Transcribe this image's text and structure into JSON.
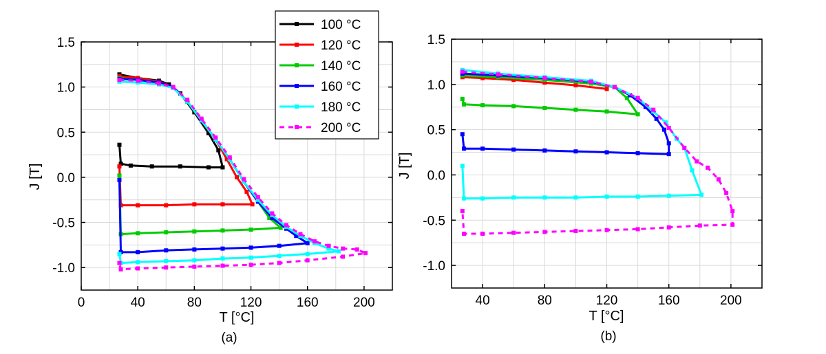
{
  "chart_data": [
    {
      "type": "line",
      "panel_label": "(a)",
      "xlabel": "T [°C]",
      "ylabel": "J [T]",
      "xlim": [
        0,
        220
      ],
      "ylim": [
        -1.25,
        1.5
      ],
      "xticks": [
        0,
        40,
        80,
        120,
        160,
        200
      ],
      "yticks": [
        -1.0,
        -0.5,
        0.0,
        0.5,
        1.0,
        1.5
      ],
      "xtick_labels": [
        "0",
        "40",
        "80",
        "120",
        "160",
        "200"
      ],
      "ytick_labels": [
        "-1.0",
        "-0.5",
        "0.0",
        "0.5",
        "1.0",
        "1.5"
      ],
      "grid": true,
      "legend_position": "top-right",
      "series": [
        {
          "name": "100 °C",
          "color": "#000000",
          "dash": "solid",
          "points": [
            [
              27,
              1.14
            ],
            [
              40,
              1.1
            ],
            [
              55,
              1.07
            ],
            [
              62,
              1.03
            ],
            [
              70,
              0.93
            ],
            [
              80,
              0.72
            ],
            [
              90,
              0.49
            ],
            [
              97,
              0.3
            ],
            [
              100,
              0.11
            ],
            [
              90,
              0.11
            ],
            [
              70,
              0.12
            ],
            [
              50,
              0.12
            ],
            [
              35,
              0.13
            ],
            [
              28,
              0.15
            ],
            [
              27,
              0.36
            ]
          ]
        },
        {
          "name": "120 °C",
          "color": "#ff0000",
          "dash": "solid",
          "points": [
            [
              27,
              1.12
            ],
            [
              40,
              1.1
            ],
            [
              55,
              1.06
            ],
            [
              65,
              1.0
            ],
            [
              75,
              0.84
            ],
            [
              85,
              0.63
            ],
            [
              95,
              0.42
            ],
            [
              103,
              0.2
            ],
            [
              110,
              0.0
            ],
            [
              117,
              -0.16
            ],
            [
              121,
              -0.3
            ],
            [
              100,
              -0.3
            ],
            [
              80,
              -0.3
            ],
            [
              60,
              -0.31
            ],
            [
              40,
              -0.31
            ],
            [
              28,
              -0.31
            ],
            [
              27,
              0.12
            ]
          ]
        },
        {
          "name": "140 °C",
          "color": "#00cc00",
          "dash": "solid",
          "points": [
            [
              27,
              1.1
            ],
            [
              40,
              1.08
            ],
            [
              55,
              1.05
            ],
            [
              65,
              1.0
            ],
            [
              75,
              0.84
            ],
            [
              85,
              0.63
            ],
            [
              95,
              0.42
            ],
            [
              105,
              0.2
            ],
            [
              115,
              -0.05
            ],
            [
              125,
              -0.27
            ],
            [
              133,
              -0.45
            ],
            [
              141,
              -0.56
            ],
            [
              120,
              -0.58
            ],
            [
              100,
              -0.59
            ],
            [
              80,
              -0.6
            ],
            [
              60,
              -0.61
            ],
            [
              40,
              -0.62
            ],
            [
              28,
              -0.63
            ],
            [
              27,
              0.02
            ]
          ]
        },
        {
          "name": "160 °C",
          "color": "#0000ff",
          "dash": "solid",
          "points": [
            [
              27,
              1.09
            ],
            [
              40,
              1.08
            ],
            [
              55,
              1.05
            ],
            [
              65,
              1.0
            ],
            [
              75,
              0.84
            ],
            [
              85,
              0.63
            ],
            [
              95,
              0.42
            ],
            [
              105,
              0.2
            ],
            [
              115,
              -0.05
            ],
            [
              125,
              -0.27
            ],
            [
              135,
              -0.45
            ],
            [
              145,
              -0.57
            ],
            [
              152,
              -0.65
            ],
            [
              160,
              -0.73
            ],
            [
              140,
              -0.76
            ],
            [
              120,
              -0.78
            ],
            [
              100,
              -0.79
            ],
            [
              80,
              -0.8
            ],
            [
              60,
              -0.81
            ],
            [
              40,
              -0.83
            ],
            [
              28,
              -0.83
            ],
            [
              27,
              -0.03
            ]
          ]
        },
        {
          "name": "180 °C",
          "color": "#00ffff",
          "dash": "solid",
          "points": [
            [
              27,
              1.06
            ],
            [
              40,
              1.05
            ],
            [
              55,
              1.03
            ],
            [
              65,
              0.99
            ],
            [
              75,
              0.84
            ],
            [
              85,
              0.63
            ],
            [
              95,
              0.42
            ],
            [
              105,
              0.2
            ],
            [
              115,
              -0.05
            ],
            [
              125,
              -0.25
            ],
            [
              135,
              -0.42
            ],
            [
              145,
              -0.55
            ],
            [
              155,
              -0.65
            ],
            [
              165,
              -0.73
            ],
            [
              175,
              -0.79
            ],
            [
              182,
              -0.82
            ],
            [
              160,
              -0.85
            ],
            [
              140,
              -0.87
            ],
            [
              120,
              -0.89
            ],
            [
              100,
              -0.9
            ],
            [
              80,
              -0.92
            ],
            [
              60,
              -0.93
            ],
            [
              40,
              -0.94
            ],
            [
              28,
              -0.95
            ],
            [
              27,
              -0.85
            ]
          ]
        },
        {
          "name": "200 °C",
          "color": "#ff00ff",
          "dash": "dashed",
          "points": [
            [
              27,
              1.08
            ],
            [
              40,
              1.07
            ],
            [
              55,
              1.04
            ],
            [
              65,
              1.0
            ],
            [
              75,
              0.86
            ],
            [
              85,
              0.65
            ],
            [
              95,
              0.44
            ],
            [
              105,
              0.22
            ],
            [
              115,
              -0.02
            ],
            [
              125,
              -0.22
            ],
            [
              135,
              -0.4
            ],
            [
              145,
              -0.53
            ],
            [
              155,
              -0.63
            ],
            [
              165,
              -0.71
            ],
            [
              175,
              -0.76
            ],
            [
              185,
              -0.79
            ],
            [
              195,
              -0.8
            ],
            [
              201,
              -0.84
            ],
            [
              185,
              -0.88
            ],
            [
              160,
              -0.92
            ],
            [
              140,
              -0.95
            ],
            [
              120,
              -0.97
            ],
            [
              100,
              -0.98
            ],
            [
              80,
              -0.99
            ],
            [
              60,
              -1.0
            ],
            [
              40,
              -1.01
            ],
            [
              28,
              -1.02
            ],
            [
              27,
              -0.95
            ]
          ]
        }
      ]
    },
    {
      "type": "line",
      "panel_label": "(b)",
      "xlabel": "T [°C]",
      "ylabel": "J [T]",
      "xlim": [
        20,
        220
      ],
      "ylim": [
        -1.25,
        1.5
      ],
      "xticks": [
        40,
        80,
        120,
        160,
        200
      ],
      "yticks": [
        -1.0,
        -0.5,
        0.0,
        0.5,
        1.0,
        1.5
      ],
      "xtick_labels": [
        "40",
        "80",
        "120",
        "160",
        "200"
      ],
      "ytick_labels": [
        "-1.0",
        "-0.5",
        "0.0",
        "0.5",
        "1.0",
        "1.5"
      ],
      "grid": true,
      "legend_position": "none",
      "series": [
        {
          "name": "100 °C",
          "color": "#000000",
          "dash": "solid",
          "points": []
        },
        {
          "name": "120 °C",
          "color": "#ff0000",
          "dash": "solid",
          "points": [
            [
              27,
              1.08
            ],
            [
              40,
              1.07
            ],
            [
              60,
              1.05
            ],
            [
              80,
              1.02
            ],
            [
              100,
              0.99
            ],
            [
              120,
              0.95
            ]
          ]
        },
        {
          "name": "140 °C",
          "color": "#00cc00",
          "dash": "solid",
          "points": [
            [
              27,
              1.1
            ],
            [
              50,
              1.08
            ],
            [
              80,
              1.05
            ],
            [
              110,
              1.01
            ],
            [
              125,
              0.97
            ],
            [
              133,
              0.85
            ],
            [
              140,
              0.67
            ],
            [
              120,
              0.7
            ],
            [
              100,
              0.72
            ],
            [
              80,
              0.74
            ],
            [
              60,
              0.76
            ],
            [
              40,
              0.77
            ],
            [
              28,
              0.78
            ],
            [
              27,
              0.84
            ]
          ]
        },
        {
          "name": "160 °C",
          "color": "#0000ff",
          "dash": "solid",
          "points": [
            [
              27,
              1.12
            ],
            [
              50,
              1.1
            ],
            [
              80,
              1.07
            ],
            [
              110,
              1.03
            ],
            [
              125,
              0.97
            ],
            [
              135,
              0.88
            ],
            [
              145,
              0.75
            ],
            [
              152,
              0.62
            ],
            [
              157,
              0.5
            ],
            [
              160,
              0.35
            ],
            [
              160,
              0.23
            ],
            [
              140,
              0.24
            ],
            [
              120,
              0.25
            ],
            [
              100,
              0.26
            ],
            [
              80,
              0.27
            ],
            [
              60,
              0.28
            ],
            [
              40,
              0.29
            ],
            [
              28,
              0.29
            ],
            [
              27,
              0.45
            ]
          ]
        },
        {
          "name": "180 °C",
          "color": "#00ffff",
          "dash": "solid",
          "points": [
            [
              27,
              1.16
            ],
            [
              50,
              1.12
            ],
            [
              80,
              1.08
            ],
            [
              110,
              1.04
            ],
            [
              125,
              0.97
            ],
            [
              140,
              0.85
            ],
            [
              150,
              0.7
            ],
            [
              158,
              0.58
            ],
            [
              165,
              0.4
            ],
            [
              170,
              0.3
            ],
            [
              175,
              0.05
            ],
            [
              181,
              -0.22
            ],
            [
              160,
              -0.23
            ],
            [
              140,
              -0.24
            ],
            [
              120,
              -0.24
            ],
            [
              100,
              -0.25
            ],
            [
              80,
              -0.25
            ],
            [
              60,
              -0.25
            ],
            [
              40,
              -0.26
            ],
            [
              28,
              -0.26
            ],
            [
              27,
              0.1
            ]
          ]
        },
        {
          "name": "200 °C",
          "color": "#ff00ff",
          "dash": "dashed",
          "points": [
            [
              27,
              1.14
            ],
            [
              50,
              1.11
            ],
            [
              80,
              1.07
            ],
            [
              110,
              1.03
            ],
            [
              125,
              0.97
            ],
            [
              140,
              0.85
            ],
            [
              150,
              0.72
            ],
            [
              160,
              0.52
            ],
            [
              170,
              0.3
            ],
            [
              178,
              0.15
            ],
            [
              185,
              0.08
            ],
            [
              192,
              -0.05
            ],
            [
              197,
              -0.2
            ],
            [
              201,
              -0.4
            ],
            [
              201,
              -0.55
            ],
            [
              180,
              -0.56
            ],
            [
              160,
              -0.58
            ],
            [
              140,
              -0.6
            ],
            [
              120,
              -0.61
            ],
            [
              100,
              -0.62
            ],
            [
              80,
              -0.63
            ],
            [
              60,
              -0.64
            ],
            [
              40,
              -0.65
            ],
            [
              28,
              -0.65
            ],
            [
              27,
              -0.4
            ]
          ]
        }
      ]
    }
  ]
}
